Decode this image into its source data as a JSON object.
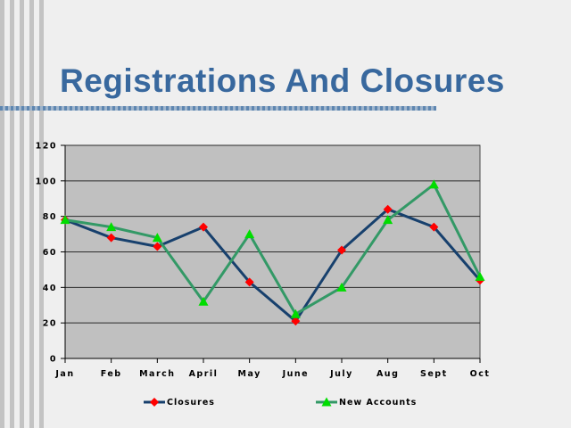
{
  "title": "Registrations And Closures",
  "colors": {
    "slide_bg": "#efefef",
    "stripe": "#c3c3c3",
    "title_color": "#38689e",
    "underline_dark": "#5e86b0",
    "underline_light": "#9fb5cd",
    "plot_bg": "#c0c0c0",
    "plot_border": "#4d4d4d",
    "gridline": "#2a2a2a",
    "axis_line": "#000000",
    "closures_line": "#17406d",
    "closures_marker": "#ff0000",
    "new_accounts_line": "#339966",
    "new_accounts_marker": "#00dd00"
  },
  "chart_data": {
    "type": "line",
    "title": "",
    "xlabel": "",
    "ylabel": "",
    "categories": [
      "Jan",
      "Feb",
      "March",
      "April",
      "May",
      "June",
      "July",
      "Aug",
      "Sept",
      "Oct"
    ],
    "series": [
      {
        "name": "Closures",
        "values": [
          78,
          68,
          63,
          74,
          43,
          21,
          61,
          84,
          74,
          44
        ],
        "line_color": "#17406d",
        "marker": "diamond",
        "marker_color": "#ff0000"
      },
      {
        "name": "New Accounts",
        "values": [
          78,
          74,
          68,
          32,
          70,
          25,
          40,
          78,
          98,
          46
        ],
        "line_color": "#339966",
        "marker": "triangle",
        "marker_color": "#00dd00"
      }
    ],
    "ylim": [
      0,
      120
    ],
    "yticks": [
      0,
      20,
      40,
      60,
      80,
      100,
      120
    ],
    "grid": true,
    "plot_background": "#c0c0c0",
    "legend_position": "bottom"
  }
}
